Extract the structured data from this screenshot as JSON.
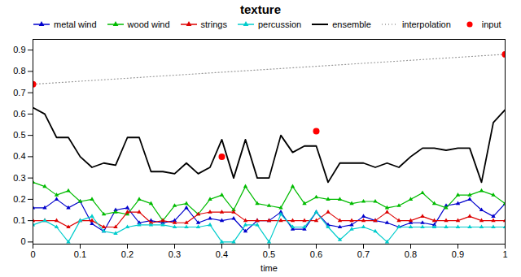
{
  "chart_data": {
    "type": "line",
    "title": "texture",
    "xlabel": "time",
    "xlim": [
      0,
      1
    ],
    "ylim": [
      -0.01,
      0.95
    ],
    "xticks": [
      0,
      0.1,
      0.2,
      0.3,
      0.4,
      0.5,
      0.6,
      0.7,
      0.8,
      0.9,
      1.0
    ],
    "yticks": [
      0,
      0.1,
      0.2,
      0.3,
      0.4,
      0.5,
      0.6,
      0.7,
      0.8,
      0.9
    ],
    "grid": false,
    "legend": "upper left",
    "series": [
      {
        "name": "metal wind",
        "type": "line",
        "color": "#0000cc",
        "marker": "triangle",
        "x": [
          0,
          0.025,
          0.05,
          0.075,
          0.1,
          0.125,
          0.15,
          0.175,
          0.2,
          0.225,
          0.25,
          0.275,
          0.3,
          0.325,
          0.35,
          0.375,
          0.4,
          0.425,
          0.45,
          0.475,
          0.5,
          0.525,
          0.55,
          0.575,
          0.6,
          0.625,
          0.65,
          0.675,
          0.7,
          0.725,
          0.75,
          0.775,
          0.8,
          0.825,
          0.85,
          0.875,
          0.9,
          0.925,
          0.95,
          0.975,
          1.0
        ],
        "values": [
          0.16,
          0.16,
          0.2,
          0.16,
          0.19,
          0.085,
          0.05,
          0.15,
          0.16,
          0.09,
          0.1,
          0.09,
          0.1,
          0.16,
          0.09,
          0.11,
          0.1,
          0.11,
          0.05,
          0.1,
          0.1,
          0.14,
          0.06,
          0.06,
          0.14,
          0.08,
          0.07,
          0.08,
          0.12,
          0.1,
          0.09,
          0.07,
          0.09,
          0.09,
          0.08,
          0.17,
          0.18,
          0.2,
          0.15,
          0.12,
          0.18
        ]
      },
      {
        "name": "wood wind",
        "type": "line",
        "color": "#00bb00",
        "marker": "triangle",
        "x": [
          0,
          0.025,
          0.05,
          0.075,
          0.1,
          0.125,
          0.15,
          0.175,
          0.2,
          0.225,
          0.25,
          0.275,
          0.3,
          0.325,
          0.35,
          0.375,
          0.4,
          0.425,
          0.45,
          0.475,
          0.5,
          0.525,
          0.55,
          0.575,
          0.6,
          0.625,
          0.65,
          0.675,
          0.7,
          0.725,
          0.75,
          0.775,
          0.8,
          0.825,
          0.85,
          0.875,
          0.9,
          0.925,
          0.95,
          0.975,
          1.0
        ],
        "values": [
          0.28,
          0.26,
          0.22,
          0.24,
          0.19,
          0.2,
          0.13,
          0.14,
          0.13,
          0.2,
          0.18,
          0.1,
          0.17,
          0.18,
          0.13,
          0.2,
          0.22,
          0.15,
          0.26,
          0.18,
          0.17,
          0.16,
          0.26,
          0.18,
          0.21,
          0.2,
          0.2,
          0.18,
          0.19,
          0.19,
          0.16,
          0.17,
          0.2,
          0.23,
          0.18,
          0.16,
          0.22,
          0.22,
          0.24,
          0.22,
          0.18
        ]
      },
      {
        "name": "strings",
        "type": "line",
        "color": "#dd0000",
        "marker": "triangle",
        "x": [
          0,
          0.025,
          0.05,
          0.075,
          0.1,
          0.125,
          0.15,
          0.175,
          0.2,
          0.225,
          0.25,
          0.275,
          0.3,
          0.325,
          0.35,
          0.375,
          0.4,
          0.425,
          0.45,
          0.475,
          0.5,
          0.525,
          0.55,
          0.575,
          0.6,
          0.625,
          0.65,
          0.675,
          0.7,
          0.725,
          0.75,
          0.775,
          0.8,
          0.825,
          0.85,
          0.875,
          0.9,
          0.925,
          0.95,
          0.975,
          1.0
        ],
        "values": [
          0.1,
          0.1,
          0.1,
          0.07,
          0.1,
          0.1,
          0.07,
          0.07,
          0.14,
          0.14,
          0.09,
          0.1,
          0.09,
          0.09,
          0.13,
          0.14,
          0.14,
          0.14,
          0.1,
          0.1,
          0.1,
          0.1,
          0.1,
          0.1,
          0.1,
          0.14,
          0.1,
          0.1,
          0.1,
          0.1,
          0.14,
          0.1,
          0.1,
          0.12,
          0.1,
          0.1,
          0.1,
          0.12,
          0.1,
          0.1,
          0.1
        ]
      },
      {
        "name": "percussion",
        "type": "line",
        "color": "#00cccc",
        "marker": "triangle",
        "x": [
          0,
          0.025,
          0.05,
          0.075,
          0.1,
          0.125,
          0.15,
          0.175,
          0.2,
          0.225,
          0.25,
          0.275,
          0.3,
          0.325,
          0.35,
          0.375,
          0.4,
          0.425,
          0.45,
          0.475,
          0.5,
          0.525,
          0.55,
          0.575,
          0.6,
          0.625,
          0.65,
          0.675,
          0.7,
          0.725,
          0.75,
          0.775,
          0.8,
          0.825,
          0.85,
          0.875,
          0.9,
          0.925,
          0.95,
          0.975,
          1.0
        ],
        "values": [
          0.08,
          0.1,
          0.07,
          0.0,
          0.1,
          0.12,
          0.05,
          0.04,
          0.07,
          0.08,
          0.08,
          0.08,
          0.07,
          0.07,
          0.07,
          0.08,
          0.0,
          0.0,
          0.08,
          0.08,
          0.0,
          0.13,
          0.07,
          0.07,
          0.14,
          0.07,
          0.01,
          0.06,
          0.07,
          0.05,
          0.0,
          0.07,
          0.07,
          0.07,
          0.07,
          0.07,
          0.07,
          0.07,
          0.07,
          0.07,
          0.07
        ]
      },
      {
        "name": "ensemble",
        "type": "line",
        "color": "#000000",
        "x": [
          0,
          0.025,
          0.05,
          0.075,
          0.1,
          0.125,
          0.15,
          0.175,
          0.2,
          0.225,
          0.25,
          0.275,
          0.3,
          0.325,
          0.35,
          0.375,
          0.4,
          0.425,
          0.45,
          0.475,
          0.5,
          0.525,
          0.55,
          0.575,
          0.6,
          0.625,
          0.65,
          0.675,
          0.7,
          0.725,
          0.75,
          0.775,
          0.8,
          0.825,
          0.85,
          0.875,
          0.9,
          0.925,
          0.95,
          0.975,
          1.0
        ],
        "values": [
          0.63,
          0.6,
          0.49,
          0.49,
          0.4,
          0.35,
          0.37,
          0.36,
          0.49,
          0.49,
          0.33,
          0.33,
          0.32,
          0.37,
          0.32,
          0.35,
          0.48,
          0.3,
          0.48,
          0.3,
          0.3,
          0.5,
          0.42,
          0.45,
          0.45,
          0.28,
          0.37,
          0.37,
          0.37,
          0.35,
          0.37,
          0.35,
          0.4,
          0.44,
          0.44,
          0.43,
          0.44,
          0.44,
          0.28,
          0.56,
          0.62
        ]
      },
      {
        "name": "interpolation",
        "type": "line",
        "color": "#999999",
        "line_style": "dotted",
        "x": [
          0.0,
          1.0
        ],
        "values": [
          0.74,
          0.88
        ]
      },
      {
        "name": "input",
        "type": "scatter",
        "color": "#ff0000",
        "marker": "circle",
        "x": [
          0.0,
          0.4,
          0.6,
          1.0
        ],
        "values": [
          0.74,
          0.4,
          0.52,
          0.88
        ]
      }
    ]
  }
}
